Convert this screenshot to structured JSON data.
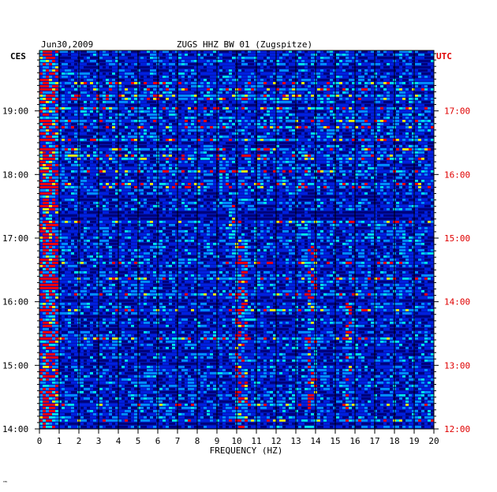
{
  "chart_data": {
    "type": "heatmap",
    "title": "ZUGS HHZ BW 01 (Zugspitze)",
    "date": "Jun30,2009",
    "xlabel": "FREQUENCY (HZ)",
    "xlim": [
      0,
      20
    ],
    "x_ticks": [
      "0",
      "1",
      "2",
      "3",
      "4",
      "5",
      "6",
      "7",
      "8",
      "9",
      "10",
      "11",
      "12",
      "13",
      "14",
      "15",
      "16",
      "17",
      "18",
      "19",
      "20"
    ],
    "left_axis": {
      "label": "CES",
      "ticks": [
        "19:00",
        "18:00",
        "17:00",
        "16:00",
        "15:00",
        "14:00"
      ],
      "tick_hours": [
        19,
        18,
        17,
        16,
        15,
        14
      ],
      "range_hours": [
        14.0,
        19.95
      ]
    },
    "right_axis": {
      "label": "UTC",
      "ticks": [
        "17:00",
        "16:00",
        "15:00",
        "14:00",
        "13:00",
        "12:00"
      ],
      "tick_hours": [
        17,
        16,
        15,
        14,
        13,
        12
      ]
    },
    "colorscale": [
      "#00007a",
      "#0020e0",
      "#0090ff",
      "#00e8e8",
      "#f0f000",
      "#ff0000"
    ],
    "features": [
      {
        "desc": "strong low-frequency energy",
        "freq_hz": [
          0.1,
          0.9
        ],
        "hours": [
          14.0,
          19.95
        ]
      },
      {
        "desc": "narrow line",
        "freq_hz": [
          5.4,
          5.5
        ],
        "hours": [
          14.7,
          17.0
        ]
      },
      {
        "desc": "burst",
        "freq_hz": [
          9.6,
          9.9
        ],
        "hours": [
          17.05,
          17.55
        ]
      },
      {
        "desc": "band",
        "freq_hz": [
          10.0,
          10.6
        ],
        "hours": [
          14.0,
          17.0
        ]
      },
      {
        "desc": "band",
        "freq_hz": [
          13.6,
          14.0
        ],
        "hours": [
          14.3,
          16.9
        ]
      },
      {
        "desc": "spots",
        "freq_hz": [
          15.5,
          15.8
        ],
        "hours": [
          14.3,
          16.0
        ]
      }
    ]
  },
  "footer_mark": "™"
}
